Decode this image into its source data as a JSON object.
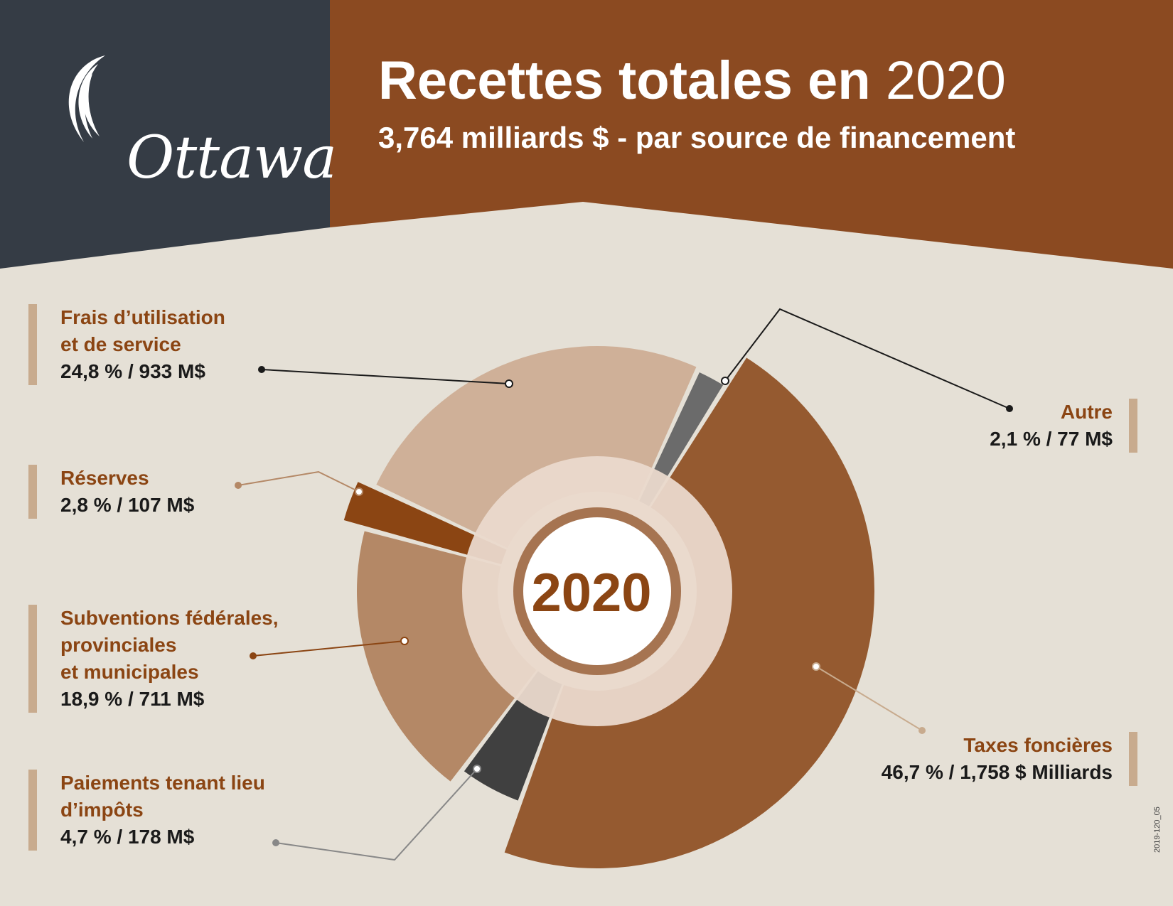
{
  "header": {
    "logo_text": "Ottawa",
    "title_bold": "Recettes totales en",
    "title_year": "2020",
    "subtitle": "3,764 milliards $ - par source de financement"
  },
  "colors": {
    "dark_panel": "#353c45",
    "brown_panel": "#8b4a21",
    "background": "#e5e0d6",
    "frais": "#cfb098",
    "reserves": "#8b4513",
    "subventions": "#b48866",
    "paiements": "#404040",
    "taxes": "#955a30",
    "autre": "#6b6b6b",
    "center_ring": "#a67451",
    "center_text": "#8b4513"
  },
  "center_label": "2020",
  "chart_data": {
    "type": "pie",
    "title": "Recettes totales en 2020",
    "total": "3,764 milliards $",
    "slices": [
      {
        "name": "Taxes foncières",
        "percent": 46.7,
        "amount": "1,758 $ Milliards",
        "color": "#955a30"
      },
      {
        "name": "Paiements tenant lieu d’impôts",
        "percent": 4.7,
        "amount": "178 M$",
        "color": "#404040"
      },
      {
        "name": "Subventions fédérales, provinciales et municipales",
        "percent": 18.9,
        "amount": "711 M$",
        "color": "#b48866"
      },
      {
        "name": "Réserves",
        "percent": 2.8,
        "amount": "107 M$",
        "color": "#8b4513"
      },
      {
        "name": "Frais d’utilisation et de service",
        "percent": 24.8,
        "amount": "933 M$",
        "color": "#cfb098"
      },
      {
        "name": "Autre",
        "percent": 2.1,
        "amount": "77 M$",
        "color": "#6b6b6b"
      }
    ]
  },
  "labels": {
    "frais": {
      "line1": "Frais d’utilisation",
      "line2": "et de service",
      "value": "24,8 % / 933 M$"
    },
    "reserves": {
      "line1": "Réserves",
      "value": "2,8 % / 107 M$"
    },
    "subventions": {
      "line1": "Subventions fédérales,",
      "line2": "provinciales",
      "line3": "et municipales",
      "value": "18,9 % / 711 M$"
    },
    "paiements": {
      "line1": "Paiements tenant lieu",
      "line2": "d’impôts",
      "value": "4,7 % / 178 M$"
    },
    "autre": {
      "line1": "Autre",
      "value": "2,1 % / 77 M$"
    },
    "taxes": {
      "line1": "Taxes foncières",
      "value": "46,7 % / 1,758 $ Milliards"
    }
  },
  "doc_code": "2019-120_05"
}
